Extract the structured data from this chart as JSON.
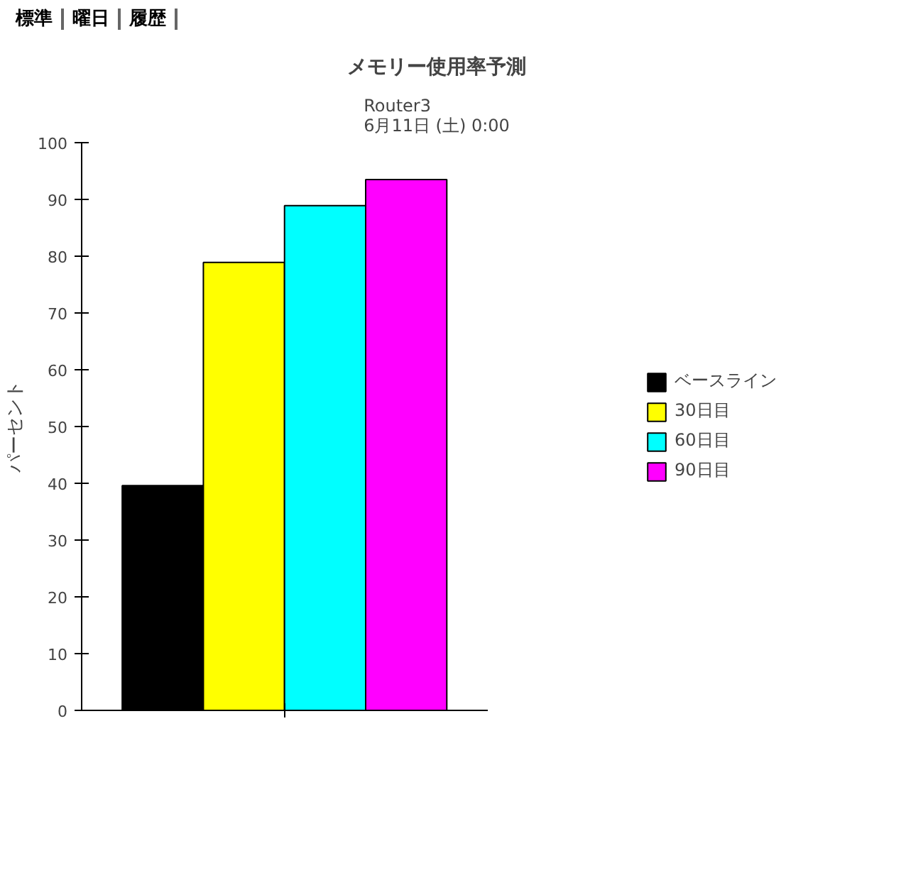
{
  "chart_data": {
    "type": "bar",
    "title": "メモリー使用率予測",
    "subtitle": "Router3\n6月11日 (土) 0:00",
    "ylabel": "パーセント",
    "categories": [
      null
    ],
    "series": [
      {
        "name": "ベースライン",
        "color": "#000000",
        "values": [
          39.6
        ]
      },
      {
        "name": "30日目",
        "color": "#ffff00",
        "values": [
          78.9
        ]
      },
      {
        "name": "60日目",
        "color": "#00ffff",
        "values": [
          88.9
        ]
      },
      {
        "name": "90日目",
        "color": "#ff00ff",
        "values": [
          93.5
        ]
      }
    ],
    "ylim": [
      0,
      100
    ],
    "yticks": [
      0,
      10,
      20,
      30,
      40,
      50,
      60,
      70,
      80,
      90,
      100
    ],
    "grid": false,
    "legend": "right",
    "annotations": [
      "標準",
      "曜日",
      "履歴"
    ]
  }
}
